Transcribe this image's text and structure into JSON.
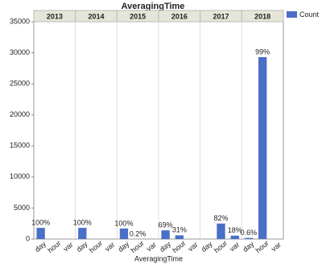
{
  "chart_data": {
    "type": "bar",
    "title": "AveragingTime",
    "x_label": "AveragingTime",
    "series_name": "Count",
    "color": "#4a6fc7",
    "categories": [
      "day",
      "hour",
      "var"
    ],
    "facets": [
      {
        "name": "2013",
        "values": [
          1800,
          null,
          null
        ],
        "percent_labels": [
          "100%",
          null,
          null
        ]
      },
      {
        "name": "2014",
        "values": [
          1800,
          null,
          null
        ],
        "percent_labels": [
          "100%",
          null,
          null
        ]
      },
      {
        "name": "2015",
        "values": [
          1700,
          3,
          null
        ],
        "percent_labels": [
          "100%",
          "0.2%",
          null
        ]
      },
      {
        "name": "2016",
        "values": [
          1400,
          600,
          null
        ],
        "percent_labels": [
          "69%",
          "31%",
          null
        ]
      },
      {
        "name": "2017",
        "values": [
          null,
          2500,
          550
        ],
        "percent_labels": [
          null,
          "82%",
          "18%"
        ]
      },
      {
        "name": "2018",
        "values": [
          180,
          29300,
          null
        ],
        "percent_labels": [
          "0.6%",
          "99%",
          null
        ]
      }
    ],
    "ylim": [
      0,
      35000
    ],
    "yticks": [
      0,
      5000,
      10000,
      15000,
      20000,
      25000,
      30000,
      35000
    ]
  }
}
